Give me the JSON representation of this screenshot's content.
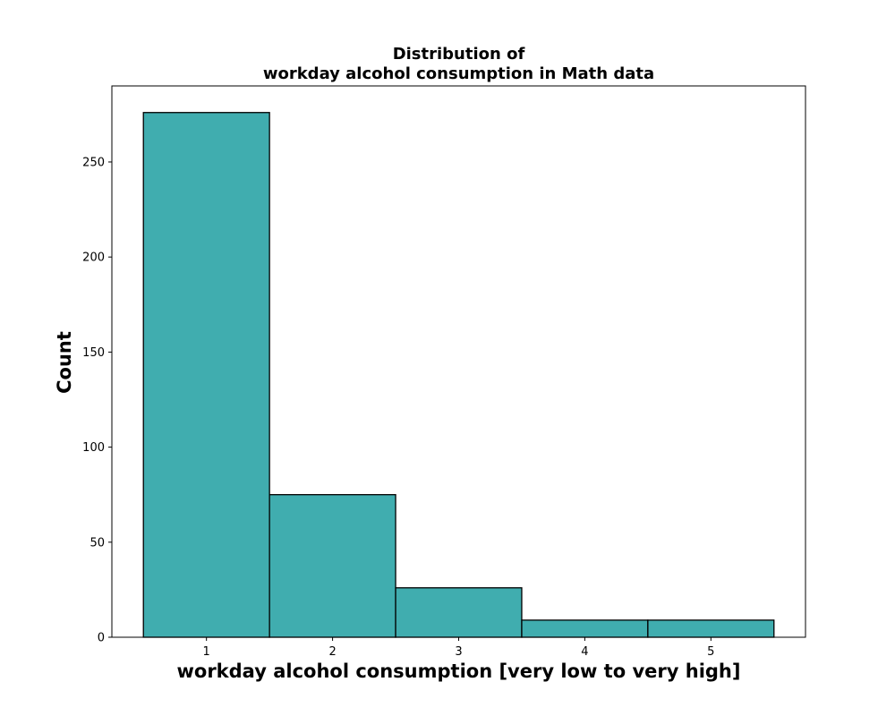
{
  "chart_data": {
    "type": "bar",
    "title_line1": "Distribution of",
    "title_line2": "workday alcohol consumption in Math data",
    "xlabel": "workday alcohol consumption [very low to very high]",
    "ylabel": "Count",
    "categories": [
      "1",
      "2",
      "3",
      "4",
      "5"
    ],
    "values": [
      276,
      75,
      26,
      9,
      9
    ],
    "xlim": [
      0.25,
      5.75
    ],
    "ylim": [
      0,
      290
    ],
    "yticks": [
      0,
      50,
      100,
      150,
      200,
      250
    ],
    "bar_color": "#40adaf",
    "edge_color": "#000000",
    "grid": false,
    "legend": "none"
  }
}
